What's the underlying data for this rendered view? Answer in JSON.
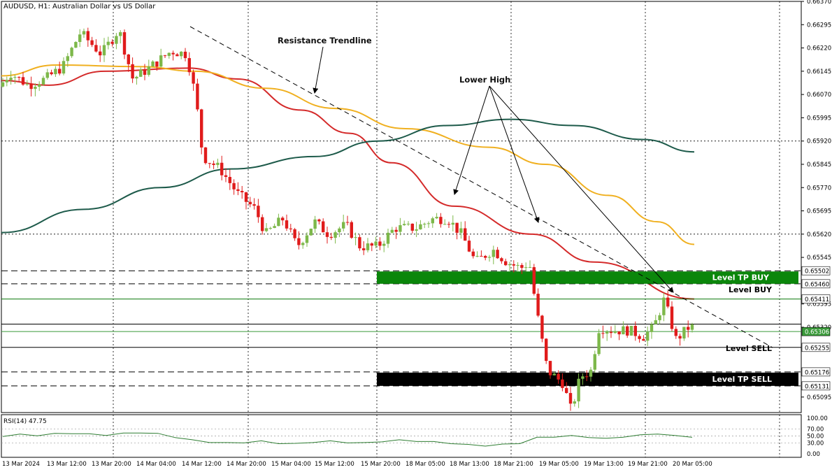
{
  "window": {
    "title": "AUDUSD, H1:  Australian Dollar vs US Dollar"
  },
  "colors": {
    "bull": "#7db84a",
    "bear": "#e01b1b",
    "ma_fast": "#d42a2a",
    "ma_mid": "#f0b020",
    "ma_slow": "#1d5a4a",
    "zone_buy": "#0b860b",
    "zone_sell": "#000000",
    "rsi": "#2e7d32",
    "grid": "#000000",
    "bid_line": "#3a9a3a"
  },
  "chart_data": [
    {
      "type": "candlestick",
      "symbol": "AUDUSD",
      "timeframe": "H1",
      "ylim": [
        0.65045,
        0.6637
      ],
      "y_ticks": [
        "0.66370",
        "0.66295",
        "0.66220",
        "0.66145",
        "0.66070",
        "0.65995",
        "0.65920",
        "0.65845",
        "0.65770",
        "0.65695",
        "0.65620",
        "0.65545",
        "0.65095"
      ],
      "x_ticks": [
        "13 Mar 2024",
        "13 Mar 12:00",
        "13 Mar 20:00",
        "14 Mar 04:00",
        "14 Mar 12:00",
        "14 Mar 20:00",
        "15 Mar 04:00",
        "15 Mar 12:00",
        "15 Mar 20:00",
        "18 Mar 05:00",
        "18 Mar 13:00",
        "18 Mar 21:00",
        "19 Mar 05:00",
        "19 Mar 13:00",
        "19 Mar 21:00",
        "20 Mar 05:00"
      ],
      "grid": "dotted vertical and horizontal",
      "series": [
        {
          "name": "fast MA",
          "approx_values": [
            0.6612,
            0.6614,
            0.6614,
            0.6602,
            0.659,
            0.658,
            0.6572,
            0.6563,
            0.6558,
            0.6553,
            0.6547,
            0.6541
          ]
        },
        {
          "name": "mid MA",
          "approx_values": [
            0.6615,
            0.6617,
            0.6616,
            0.661,
            0.6605,
            0.66,
            0.6594,
            0.6588,
            0.6578,
            0.6568,
            0.656
          ]
        },
        {
          "name": "slow MA",
          "approx_values": [
            0.6562,
            0.6575,
            0.6583,
            0.6588,
            0.6593,
            0.6598,
            0.6599,
            0.6596,
            0.6591
          ]
        }
      ],
      "price_levels": [
        {
          "label": "Level TP BUY",
          "price": "0.65502",
          "secondary": "0.65460"
        },
        {
          "label": "Level BUY",
          "price": "0.65411"
        },
        {
          "label": "Level SELL",
          "price": "0.65255"
        },
        {
          "label": "Level TP SELL",
          "price": "0.65176",
          "secondary": "0.65131"
        }
      ],
      "current_price": "0.65306",
      "last_price_label": "0.65320",
      "hidden_tick": "0.65395",
      "annotations": [
        "Resistance Trendline",
        "Lower High"
      ]
    },
    {
      "type": "line",
      "name": "RSI(14) 47.75",
      "ylim": [
        0,
        100
      ],
      "y_ticks": [
        "100.00",
        "70.00",
        "50.00",
        "30.00",
        "0.00"
      ],
      "approx_values": [
        50,
        54,
        52,
        56,
        58,
        55,
        53,
        57,
        60,
        56,
        47,
        38,
        33,
        30,
        32,
        35,
        30,
        28,
        33,
        35,
        32,
        30,
        35,
        38,
        36,
        33,
        30,
        25,
        23,
        26,
        30,
        45,
        48,
        50,
        47,
        42,
        48,
        52,
        57,
        50,
        47.75
      ]
    }
  ]
}
